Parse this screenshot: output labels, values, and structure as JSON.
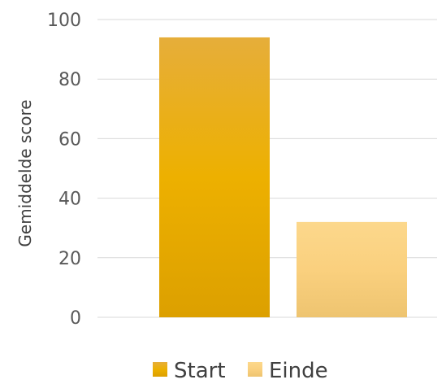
{
  "chart_data": {
    "type": "bar",
    "title": "",
    "xlabel": "",
    "ylabel": "Gemiddelde score",
    "ylim": [
      0,
      100
    ],
    "yticks": [
      0,
      20,
      40,
      60,
      80,
      100
    ],
    "grid": true,
    "legend_position": "bottom",
    "series": [
      {
        "name": "Start",
        "values": [
          94
        ],
        "color": "#E9A800"
      },
      {
        "name": "Einde",
        "values": [
          32
        ],
        "color": "#F9D27E"
      }
    ]
  }
}
